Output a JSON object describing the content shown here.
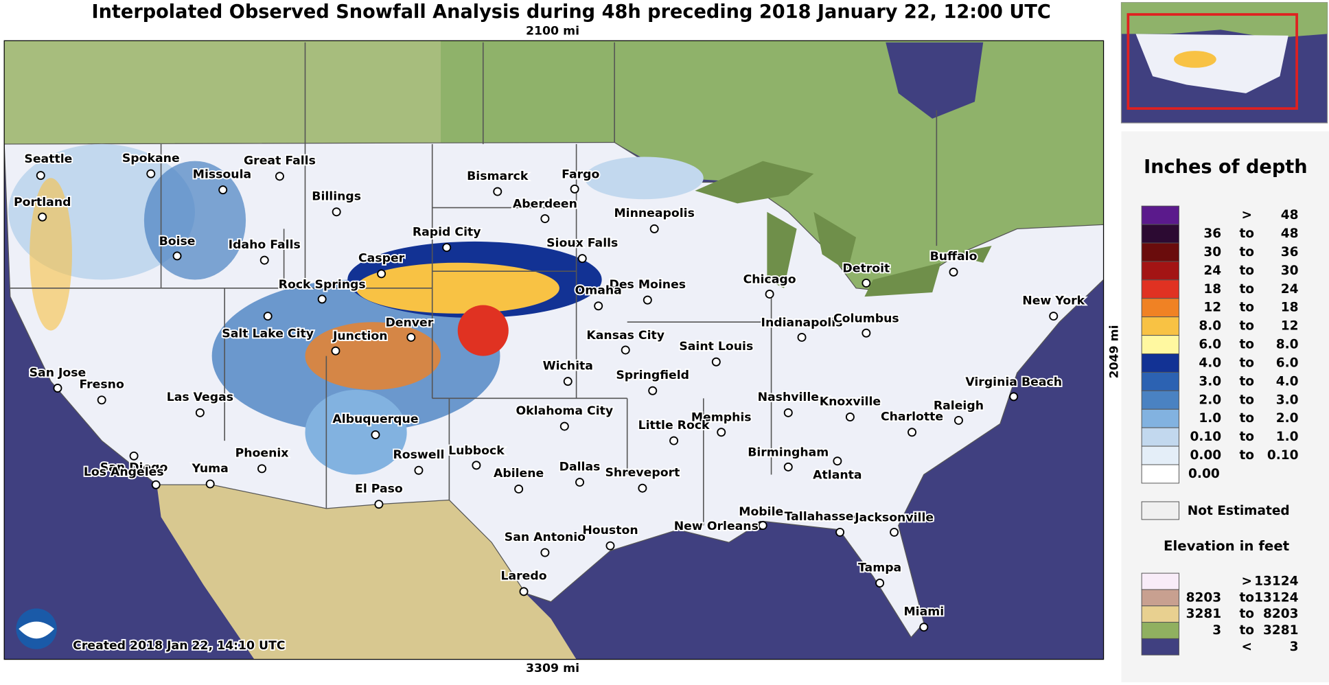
{
  "title": "Interpolated Observed Snowfall Analysis during 48h preceding 2018 January 22, 12:00 UTC",
  "scale": {
    "top": "2100 mi",
    "bottom": "3309 mi",
    "right": "2049 mi"
  },
  "credit": "Created 2018 Jan 22, 14:10 UTC",
  "cities": [
    "Seattle",
    "Spokane",
    "Great Falls",
    "Missoula",
    "Portland",
    "Billings",
    "Bismarck",
    "Fargo",
    "Aberdeen",
    "Minneapolis",
    "Rapid City",
    "Boise",
    "Idaho Falls",
    "Sioux Falls",
    "Casper",
    "Buffalo",
    "Detroit",
    "Chicago",
    "Des Moines",
    "Rock Springs",
    "Omaha",
    "New York",
    "Indianapolis",
    "Columbus",
    "Denver",
    "Salt Lake City",
    "Junction",
    "Kansas City",
    "Saint Louis",
    "Wichita",
    "Springfield",
    "San Jose",
    "Fresno",
    "Virginia Beach",
    "Las Vegas",
    "Nashville",
    "Knoxville",
    "Raleigh",
    "Oklahoma City",
    "Memphis",
    "Charlotte",
    "Albuquerque",
    "Little Rock",
    "Birmingham",
    "Phoenix",
    "Lubbock",
    "Roswell",
    "Atlanta",
    "Dallas",
    "Shreveport",
    "Abilene",
    "San Diego",
    "Yuma",
    "Los Angeles",
    "El Paso",
    "Mobile",
    "Tallahassee",
    "Jacksonville",
    "New Orleans",
    "Houston",
    "San Antonio",
    "Laredo",
    "Tampa",
    "Miami"
  ],
  "legend": {
    "title": "Inches of depth",
    "rows": [
      {
        "sep": ">",
        "to": "48",
        "color": "#5b1a8c"
      },
      {
        "from": "36",
        "sep": "to",
        "to": "48",
        "color": "#2c0a32"
      },
      {
        "from": "30",
        "sep": "to",
        "to": "36",
        "color": "#6a0c0c"
      },
      {
        "from": "24",
        "sep": "to",
        "to": "30",
        "color": "#a31414"
      },
      {
        "from": "18",
        "sep": "to",
        "to": "24",
        "color": "#e03222"
      },
      {
        "from": "12",
        "sep": "to",
        "to": "18",
        "color": "#f08224"
      },
      {
        "from": "8.0",
        "sep": "to",
        "to": "12",
        "color": "#f8c244"
      },
      {
        "from": "6.0",
        "sep": "to",
        "to": "8.0",
        "color": "#fff8a0"
      },
      {
        "from": "4.0",
        "sep": "to",
        "to": "6.0",
        "color": "#123294"
      },
      {
        "from": "3.0",
        "sep": "to",
        "to": "4.0",
        "color": "#2c62b2"
      },
      {
        "from": "2.0",
        "sep": "to",
        "to": "3.0",
        "color": "#4a82c2"
      },
      {
        "from": "1.0",
        "sep": "to",
        "to": "2.0",
        "color": "#82b2e0"
      },
      {
        "from": "0.10",
        "sep": "to",
        "to": "1.0",
        "color": "#c2d8ee"
      },
      {
        "from": "0.00",
        "sep": "to",
        "to": "0.10",
        "color": "#e4eef8"
      },
      {
        "from": "0.00",
        "color": "#ffffff"
      }
    ],
    "not_estimated": {
      "label": "Not Estimated",
      "color": "#f0f0f0"
    },
    "elevation_title": "Elevation in feet",
    "elevation_rows": [
      {
        "sep": ">",
        "to": "13124",
        "color": "#f8ecf8"
      },
      {
        "from": "8203",
        "sep": "to",
        "to": "13124",
        "color": "#c8a090"
      },
      {
        "from": "3281",
        "sep": "to",
        "to": "8203",
        "color": "#e8d090"
      },
      {
        "from": "3",
        "sep": "to",
        "to": "3281",
        "color": "#90b060"
      },
      {
        "sep": "<",
        "to": "3",
        "color": "#404080"
      }
    ]
  }
}
